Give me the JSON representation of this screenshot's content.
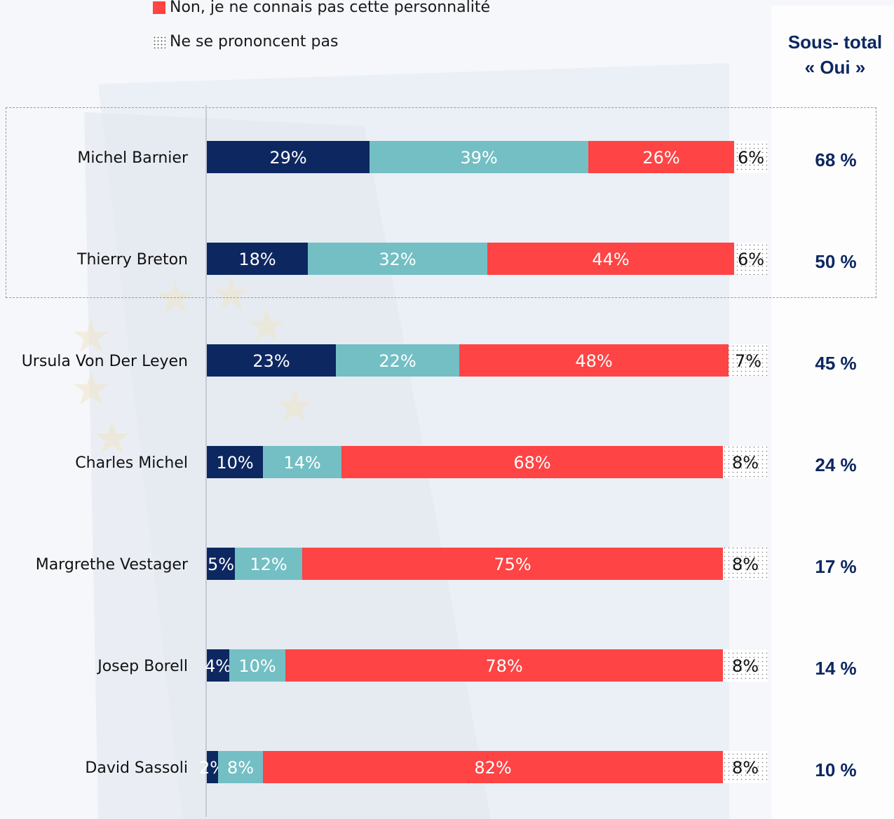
{
  "legend": {
    "non_connais": "Non, je ne connais pas cette personnalité",
    "nsp": "Ne se prononcent pas"
  },
  "subtotal_header": {
    "line1": "Sous- total",
    "line2": "« Oui »"
  },
  "colors": {
    "oui_tres_bien": "#0d2760",
    "oui_vaguement": "#73bfc4",
    "non": "#fe4444",
    "nsp": "#ffffff"
  },
  "chart_data": {
    "type": "bar",
    "orientation": "horizontal",
    "stacked": true,
    "categories": [
      "Michel Barnier",
      "Thierry Breton",
      "Ursula Von Der Leyen",
      "Charles Michel",
      "Margrethe Vestager",
      "Josep Borell",
      "David Sassoli"
    ],
    "series": [
      {
        "values": [
          29,
          18,
          23,
          10,
          5,
          4,
          2
        ],
        "labels": [
          "29%",
          "18%",
          "23%",
          "10%",
          "5%",
          "4%",
          "2%"
        ]
      },
      {
        "values": [
          39,
          32,
          22,
          14,
          12,
          10,
          8
        ],
        "labels": [
          "39%",
          "32%",
          "22%",
          "14%",
          "12%",
          "10%",
          "8%"
        ]
      },
      {
        "name": "Non, je ne connais pas cette personnalité",
        "values": [
          26,
          44,
          48,
          68,
          75,
          78,
          82
        ],
        "labels": [
          "26%",
          "44%",
          "48%",
          "68%",
          "75%",
          "78%",
          "82%"
        ]
      },
      {
        "name": "Ne se prononcent pas",
        "values": [
          6,
          6,
          7,
          8,
          8,
          8,
          8
        ],
        "labels": [
          "6%",
          "6%",
          "7%",
          "8%",
          "8%",
          "8%",
          "8%"
        ]
      }
    ],
    "subtotals": [
      "68 %",
      "50 %",
      "45 %",
      "24 %",
      "17 %",
      "14 %",
      "10 %"
    ],
    "xlim": [
      0,
      100
    ],
    "highlighted_rows": [
      "Michel Barnier",
      "Thierry Breton"
    ]
  }
}
